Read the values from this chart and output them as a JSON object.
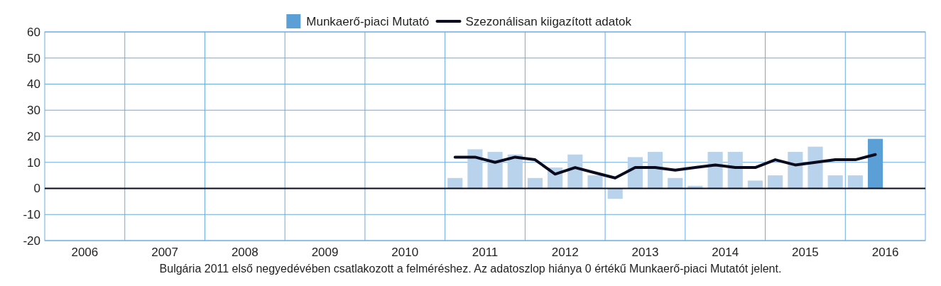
{
  "chart_data": {
    "type": "bar",
    "x": [
      2011.125,
      2011.375,
      2011.625,
      2011.875,
      2012.125,
      2012.375,
      2012.625,
      2012.875,
      2013.125,
      2013.375,
      2013.625,
      2013.875,
      2014.125,
      2014.375,
      2014.625,
      2014.875,
      2015.125,
      2015.375,
      2015.625,
      2015.875,
      2016.125,
      2016.375
    ],
    "series": [
      {
        "name": "Munkaerő-piaci Mutató",
        "color": "#5aa0d6",
        "colors": [
          "#b8d3eb",
          "#b8d3eb",
          "#b8d3eb",
          "#b8d3eb",
          "#b8d3eb",
          "#b8d3eb",
          "#b8d3eb",
          "#b8d3eb",
          "#b8d3eb",
          "#b8d3eb",
          "#b8d3eb",
          "#b8d3eb",
          "#b8d3eb",
          "#b8d3eb",
          "#b8d3eb",
          "#b8d3eb",
          "#b8d3eb",
          "#b8d3eb",
          "#b8d3eb",
          "#b8d3eb",
          "#b8d3eb",
          "#5aa0d6"
        ],
        "values": [
          4,
          15,
          14,
          13,
          4,
          8,
          13,
          5,
          -4,
          12,
          14,
          4,
          1,
          14,
          14,
          3,
          5,
          14,
          16,
          5,
          5,
          19
        ]
      },
      {
        "name": "Szezonálisan kiigazított adatok",
        "type": "line",
        "color": "#0a0a1e",
        "values": [
          12,
          12,
          10,
          12,
          11,
          5.5,
          8,
          6,
          4,
          8,
          8,
          7,
          8,
          9,
          8,
          8,
          11,
          9,
          10,
          11,
          11,
          13
        ]
      }
    ],
    "xlim": [
      2006,
      2017
    ],
    "xticks": [
      {
        "value": 2006.5,
        "label": "2006"
      },
      {
        "value": 2007,
        "label": null
      },
      {
        "value": 2007.5,
        "label": "2007"
      },
      {
        "value": 2008,
        "label": null
      },
      {
        "value": 2008.5,
        "label": "2008"
      },
      {
        "value": 2009,
        "label": null
      },
      {
        "value": 2009.5,
        "label": "2009"
      },
      {
        "value": 2010,
        "label": null
      },
      {
        "value": 2010.5,
        "label": "2010"
      },
      {
        "value": 2011,
        "label": null
      },
      {
        "value": 2011.5,
        "label": "2011"
      },
      {
        "value": 2012,
        "label": null
      },
      {
        "value": 2012.5,
        "label": "2012"
      },
      {
        "value": 2013,
        "label": null
      },
      {
        "value": 2013.5,
        "label": "2013"
      },
      {
        "value": 2014,
        "label": null
      },
      {
        "value": 2014.5,
        "label": "2014"
      },
      {
        "value": 2015,
        "label": null
      },
      {
        "value": 2015.5,
        "label": "2015"
      },
      {
        "value": 2016,
        "label": null
      },
      {
        "value": 2016.5,
        "label": "2016"
      }
    ],
    "ylim": [
      -20,
      60
    ],
    "yticks": [
      -20,
      -10,
      0,
      10,
      20,
      30,
      40,
      50,
      60
    ],
    "grid": true,
    "legend": "top",
    "annotations": [
      "Bulgária 2011 első negyedévében csatlakozott a felméréshez. Az adatoszlop hiánya 0 értékű Munkaerő-piaci Mutatót jelent."
    ]
  }
}
